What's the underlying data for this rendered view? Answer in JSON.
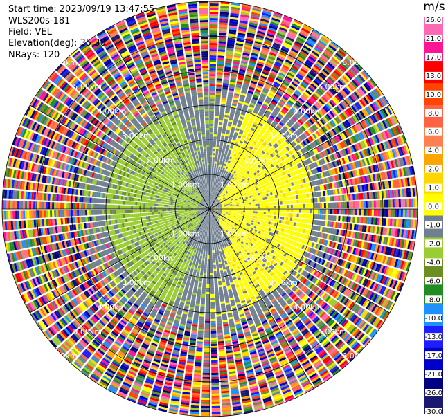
{
  "header": {
    "start_time": "Start time: 2023/09/19 13:47:55",
    "instrument": "WLS200s-181",
    "field": "Field: VEL",
    "elevation": "Elevation(deg): 35.30",
    "nrays": "NRays: 120"
  },
  "colorbar": {
    "unit": "m/s",
    "colors": [
      "#191970",
      "#000080",
      "#0000cd",
      "#1e1eff",
      "#1e90ff",
      "#228b22",
      "#6b8e23",
      "#9acd32",
      "#708090",
      "#ffff00",
      "#ffd700",
      "#ffa500",
      "#ff7f50",
      "#ff6347",
      "#ff4500",
      "#ff0000",
      "#ff1493",
      "#ff69b4"
    ],
    "labels": [
      "-30.0",
      "-26.0",
      "-21.0",
      "-17.0",
      "-13.0",
      "-10.0",
      "-8.0",
      "-6.0",
      "-4.0",
      "-2.0",
      "-1.0",
      "0.0",
      "1.0",
      "2.0",
      "4.0",
      "6.0",
      "8.0",
      "10.0",
      "13.0",
      "17.0",
      "21.0",
      "26.0"
    ]
  },
  "chart_data": {
    "type": "heatmap",
    "subtype": "ppi-polar",
    "field": "VEL",
    "unit": "m/s",
    "elevation_deg": 35.3,
    "nrays": 120,
    "max_range_km": 6.0,
    "range_rings_km": [
      1.0,
      2.0,
      3.0,
      4.0,
      5.0,
      6.0
    ],
    "range_ring_labels": [
      "1.00km",
      "2.00km",
      "3.00km",
      "4.00km",
      "5.00km",
      "6.00km"
    ],
    "value_range": [
      -30.0,
      26.0
    ],
    "pattern": {
      "inner_gray_core_km": [
        0.0,
        1.2
      ],
      "approaching_positive_sector": "east (yellow, 1 to 4 m/s)",
      "receding_negative_sector": "west (green, -1 to -4 m/s)",
      "noise_beyond_km": 3.8
    }
  }
}
